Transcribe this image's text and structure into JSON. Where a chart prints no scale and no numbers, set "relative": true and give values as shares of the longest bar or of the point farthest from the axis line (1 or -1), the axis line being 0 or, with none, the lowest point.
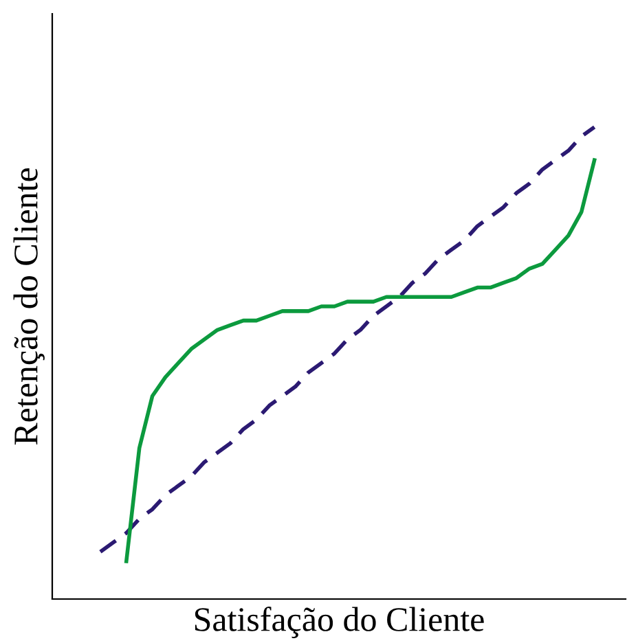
{
  "chart_data": {
    "type": "line",
    "relative": true,
    "xlabel": "Satisfação do Cliente",
    "ylabel": "Retenção do Cliente",
    "legend": false,
    "marker": "none",
    "categories": [
      null,
      null,
      null,
      null,
      null,
      null,
      null,
      null,
      null,
      null,
      null,
      null,
      null,
      null,
      null,
      null,
      null,
      null,
      null,
      null,
      null,
      null,
      null,
      null,
      null,
      null,
      null,
      null,
      null,
      null,
      null,
      null,
      null,
      null,
      null,
      null,
      null,
      null,
      null
    ],
    "series": [
      {
        "color": "#2b1a72",
        "line_style": "dashed",
        "values": [
          0.1,
          0.12,
          0.14,
          0.17,
          0.19,
          0.22,
          0.24,
          0.26,
          0.29,
          0.31,
          0.33,
          0.36,
          0.38,
          0.41,
          0.43,
          0.45,
          0.48,
          0.5,
          0.52,
          0.55,
          0.57,
          0.6,
          0.62,
          0.64,
          0.67,
          0.69,
          0.72,
          0.74,
          0.76,
          0.79,
          0.81,
          0.83,
          0.86,
          0.88,
          0.91,
          0.93,
          0.95,
          0.98,
          1.0
        ]
      },
      {
        "color": "#0c9a3e",
        "line_style": "solid",
        "values": [
          null,
          null,
          0.08,
          0.32,
          0.43,
          0.47,
          0.5,
          0.53,
          0.55,
          0.57,
          0.58,
          0.59,
          0.59,
          0.6,
          0.61,
          0.61,
          0.61,
          0.62,
          0.62,
          0.63,
          0.63,
          0.63,
          0.64,
          0.64,
          0.64,
          0.64,
          0.64,
          0.64,
          0.65,
          0.66,
          0.66,
          0.67,
          0.68,
          0.7,
          0.71,
          0.74,
          0.77,
          0.82,
          0.93
        ]
      }
    ]
  }
}
